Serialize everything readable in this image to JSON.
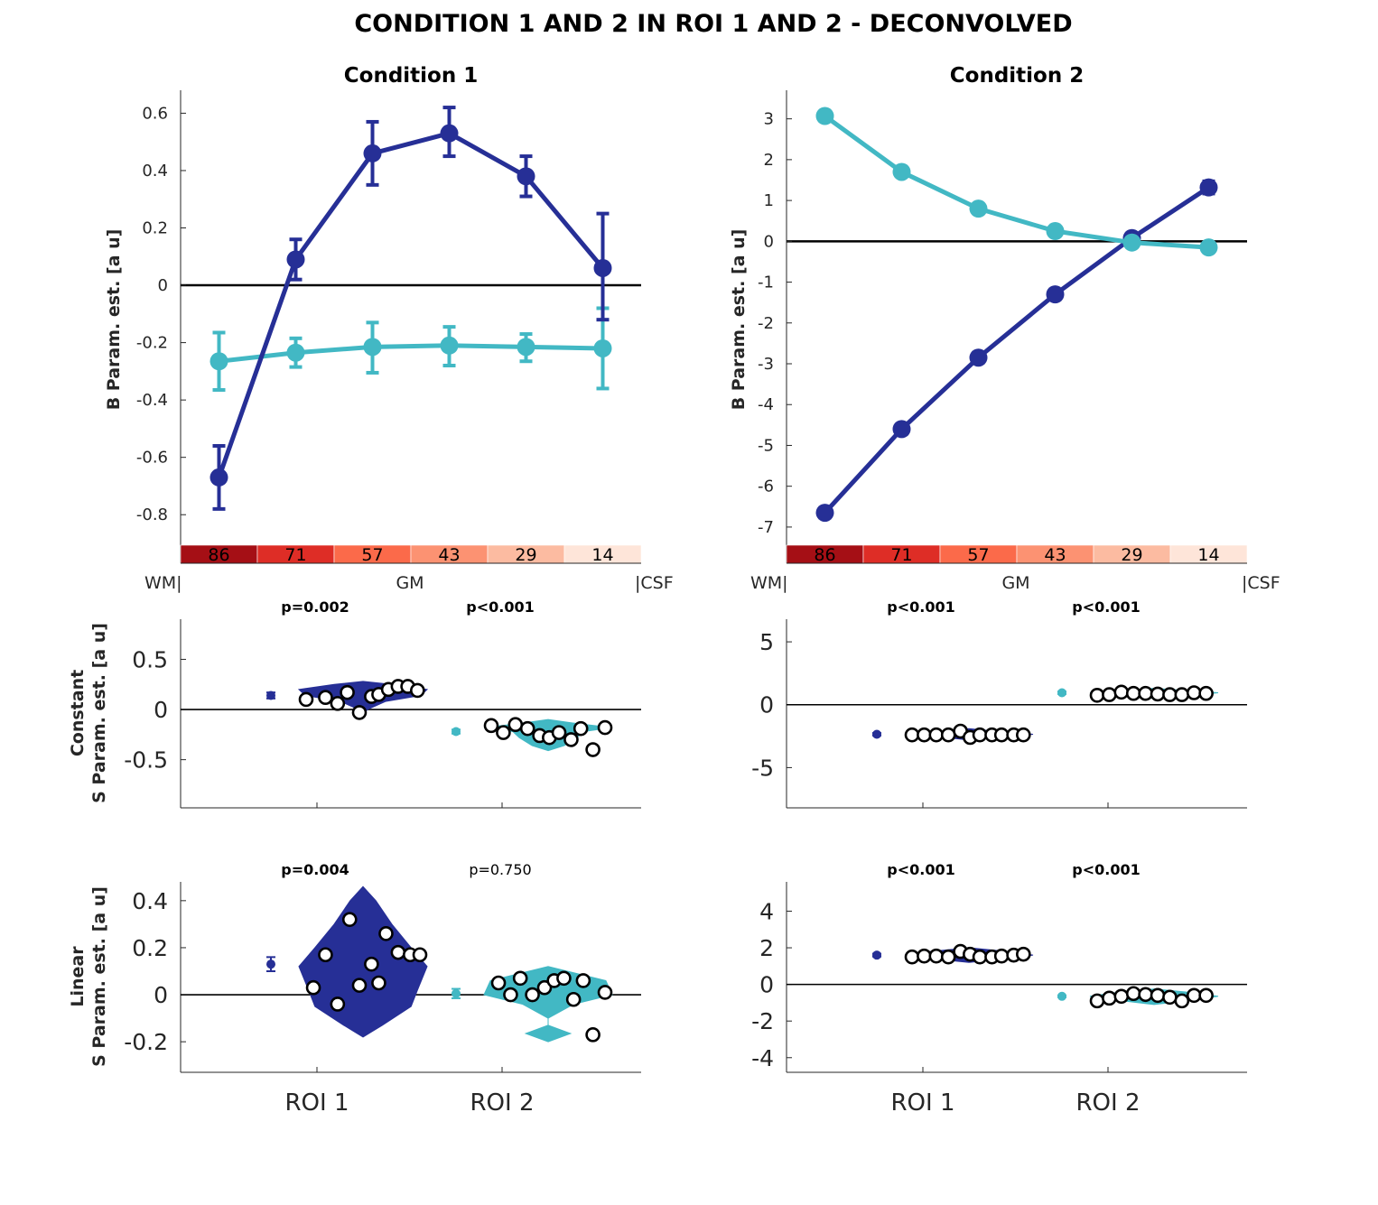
{
  "title": "CONDITION 1 AND 2 IN ROI 1 AND 2 - DECONVOLVED",
  "colors": {
    "roi1": "#262f96",
    "roi2": "#42b8c4",
    "axis": "#262626"
  },
  "layer_labels": {
    "left": "WM|",
    "middle": "GM",
    "right": "|CSF"
  },
  "colorbar": {
    "labels": [
      "86",
      "71",
      "57",
      "43",
      "29",
      "14"
    ],
    "colors": [
      "#a50f15",
      "#de2d26",
      "#fb6a4a",
      "#fc9272",
      "#fcbba1",
      "#fee5d9"
    ]
  },
  "y_labels": {
    "profile": "B Param. est. [a u]",
    "constant_line1": "Constant",
    "constant_line2": "S Param. est. [a u]",
    "linear_line1": "Linear",
    "linear_line2": "S Param. est. [a u]"
  },
  "roi_ticks": [
    "ROI 1",
    "ROI 2"
  ],
  "chart_data": [
    {
      "type": "line",
      "title": "Condition 1",
      "ylabel": "B Param. est. [a u]",
      "ylim": [
        -0.9,
        0.68
      ],
      "yticks": [
        -0.8,
        -0.6,
        -0.4,
        -0.2,
        0,
        0.2,
        0.4,
        0.6
      ],
      "ytick_labels": [
        "-0.8",
        "-0.6",
        "-0.4",
        "-0.2",
        "0",
        "0.2",
        "0.4",
        "0.6"
      ],
      "x": [
        1,
        2,
        3,
        4,
        5,
        6
      ],
      "series": [
        {
          "color": "#262f96",
          "values": [
            -0.67,
            0.09,
            0.46,
            0.53,
            0.38,
            0.06
          ],
          "err_low": [
            0.11,
            0.07,
            0.11,
            0.08,
            0.07,
            0.18
          ],
          "err_high": [
            0.11,
            0.07,
            0.11,
            0.09,
            0.07,
            0.19
          ]
        },
        {
          "color": "#42b8c4",
          "values": [
            -0.265,
            -0.235,
            -0.215,
            -0.21,
            -0.215,
            -0.22
          ],
          "err_low": [
            0.1,
            0.05,
            0.09,
            0.07,
            0.05,
            0.14
          ],
          "err_high": [
            0.1,
            0.05,
            0.085,
            0.065,
            0.045,
            0.14
          ]
        }
      ]
    },
    {
      "type": "line",
      "title": "Condition 2",
      "ylabel": "B Param. est. [a u]",
      "ylim": [
        -7.4,
        3.7
      ],
      "yticks": [
        -7,
        -6,
        -5,
        -4,
        -3,
        -2,
        -1,
        0,
        1,
        2,
        3
      ],
      "ytick_labels": [
        "-7",
        "-6",
        "-5",
        "-4",
        "-3",
        "-2",
        "-1",
        "0",
        "1",
        "2",
        "3"
      ],
      "x": [
        1,
        2,
        3,
        4,
        5,
        6
      ],
      "series": [
        {
          "color": "#262f96",
          "values": [
            -6.65,
            -4.6,
            -2.85,
            -1.3,
            0.08,
            1.32
          ],
          "err_low": [
            0.12,
            0.12,
            0.12,
            0.12,
            0.1,
            0.15
          ],
          "err_high": [
            0.12,
            0.12,
            0.12,
            0.12,
            0.1,
            0.15
          ]
        },
        {
          "color": "#42b8c4",
          "values": [
            3.07,
            1.7,
            0.8,
            0.25,
            -0.03,
            -0.15
          ],
          "err_low": [
            0.1,
            0.1,
            0.08,
            0.08,
            0.08,
            0.1
          ],
          "err_high": [
            0.1,
            0.1,
            0.08,
            0.08,
            0.08,
            0.1
          ]
        }
      ]
    },
    {
      "type": "scatter",
      "panel": "Condition 1 - Constant",
      "ylabel": "Constant S Param. est. [a u]",
      "ylim": [
        -0.98,
        0.9
      ],
      "yticks": [
        -0.5,
        0,
        0.5
      ],
      "ytick_labels": [
        "-0.5",
        "0",
        "0.5"
      ],
      "categories": [
        "ROI 1",
        "ROI 2"
      ],
      "p_values": [
        {
          "text": "p=0.002",
          "bold": true
        },
        {
          "text": "p<0.001",
          "bold": true
        }
      ],
      "series": [
        {
          "color": "#262f96",
          "mean": 0.14,
          "err": 0.03,
          "x_offset": [
            0.0,
            0.08,
            0.13,
            0.17,
            0.22,
            0.27,
            0.3,
            0.34,
            0.38,
            0.42,
            0.46
          ],
          "values": [
            0.1,
            0.12,
            0.06,
            0.17,
            -0.03,
            0.13,
            0.15,
            0.2,
            0.23,
            0.23,
            0.19
          ],
          "violin_width": [
            [
              -0.05,
              0.0
            ],
            [
              0.0,
              0.07
            ],
            [
              0.08,
              0.35
            ],
            [
              0.14,
              0.9
            ],
            [
              0.2,
              1.0
            ],
            [
              0.25,
              0.45
            ],
            [
              0.28,
              0.0
            ]
          ]
        },
        {
          "color": "#42b8c4",
          "mean": -0.22,
          "err": 0.02,
          "x_offset": [
            0.0,
            0.05,
            0.1,
            0.15,
            0.2,
            0.24,
            0.28,
            0.33,
            0.37,
            0.42,
            0.47
          ],
          "values": [
            -0.16,
            -0.23,
            -0.15,
            -0.19,
            -0.26,
            -0.28,
            -0.23,
            -0.3,
            -0.19,
            -0.4,
            -0.18
          ],
          "violin_width": [
            [
              -0.41,
              0.0
            ],
            [
              -0.36,
              0.25
            ],
            [
              -0.28,
              0.45
            ],
            [
              -0.22,
              0.55
            ],
            [
              -0.18,
              1.0
            ],
            [
              -0.14,
              0.45
            ],
            [
              -0.1,
              0.0
            ]
          ]
        }
      ]
    },
    {
      "type": "scatter",
      "panel": "Condition 2 - Constant",
      "ylim": [
        -8.2,
        6.8
      ],
      "yticks": [
        -5,
        0,
        5
      ],
      "ytick_labels": [
        "-5",
        "0",
        "5"
      ],
      "categories": [
        "ROI 1",
        "ROI 2"
      ],
      "p_values": [
        {
          "text": "p<0.001",
          "bold": true
        },
        {
          "text": "p<0.001",
          "bold": true
        }
      ],
      "series": [
        {
          "color": "#262f96",
          "mean": -2.35,
          "err": 0.1,
          "x_offset": [
            0.0,
            0.05,
            0.1,
            0.15,
            0.2,
            0.24,
            0.28,
            0.33,
            0.37,
            0.42,
            0.46
          ],
          "values": [
            -2.4,
            -2.4,
            -2.4,
            -2.4,
            -2.1,
            -2.6,
            -2.4,
            -2.4,
            -2.4,
            -2.4,
            -2.4
          ],
          "violin_width": [
            [
              -2.8,
              0.0
            ],
            [
              -2.5,
              0.6
            ],
            [
              -2.35,
              1.0
            ],
            [
              -2.2,
              0.6
            ],
            [
              -1.9,
              0.0
            ]
          ]
        },
        {
          "color": "#42b8c4",
          "mean": 0.95,
          "err": 0.1,
          "x_offset": [
            0.0,
            0.05,
            0.1,
            0.15,
            0.2,
            0.25,
            0.3,
            0.35,
            0.4,
            0.45
          ],
          "values": [
            0.75,
            0.8,
            1.0,
            0.9,
            0.9,
            0.85,
            0.8,
            0.8,
            0.95,
            0.9
          ],
          "violin_width": [
            [
              0.5,
              0.0
            ],
            [
              0.8,
              0.7
            ],
            [
              0.95,
              1.0
            ],
            [
              1.1,
              0.6
            ],
            [
              1.3,
              0.0
            ]
          ]
        }
      ]
    },
    {
      "type": "scatter",
      "panel": "Condition 1 - Linear",
      "ylabel": "Linear S Param. est. [a u]",
      "ylim": [
        -0.33,
        0.48
      ],
      "yticks": [
        -0.2,
        0,
        0.2,
        0.4
      ],
      "ytick_labels": [
        "-0.2",
        "0",
        "0.2",
        "0.4"
      ],
      "categories": [
        "ROI 1",
        "ROI 2"
      ],
      "p_values": [
        {
          "text": "p=0.004",
          "bold": true
        },
        {
          "text": "p=0.750",
          "bold": false
        }
      ],
      "series": [
        {
          "color": "#262f96",
          "mean": 0.13,
          "err": 0.03,
          "x_offset": [
            0.03,
            0.08,
            0.13,
            0.18,
            0.22,
            0.27,
            0.3,
            0.33,
            0.38,
            0.43,
            0.47
          ],
          "values": [
            0.03,
            0.17,
            -0.04,
            0.32,
            0.04,
            0.13,
            0.05,
            0.26,
            0.18,
            0.17,
            0.17
          ],
          "violin_width": [
            [
              -0.18,
              0.0
            ],
            [
              -0.13,
              0.3
            ],
            [
              -0.05,
              0.75
            ],
            [
              0.02,
              0.85
            ],
            [
              0.12,
              1.0
            ],
            [
              0.2,
              0.75
            ],
            [
              0.3,
              0.45
            ],
            [
              0.4,
              0.2
            ],
            [
              0.46,
              0.0
            ]
          ]
        },
        {
          "color": "#42b8c4",
          "mean": 0.005,
          "err": 0.02,
          "x_offset": [
            0.03,
            0.08,
            0.12,
            0.17,
            0.22,
            0.26,
            0.3,
            0.34,
            0.38,
            0.42,
            0.47
          ],
          "values": [
            0.05,
            0.0,
            0.07,
            0.0,
            0.03,
            0.06,
            0.07,
            -0.02,
            0.06,
            -0.17,
            0.01
          ],
          "violin_width": [
            [
              -0.2,
              0.0
            ],
            [
              -0.165,
              0.35
            ],
            [
              -0.13,
              0.0
            ],
            [
              -0.1,
              0.0
            ],
            [
              -0.04,
              0.4
            ],
            [
              0.0,
              1.0
            ],
            [
              0.06,
              0.9
            ],
            [
              0.1,
              0.3
            ],
            [
              0.12,
              0.0
            ]
          ]
        }
      ]
    },
    {
      "type": "scatter",
      "panel": "Condition 2 - Linear",
      "ylim": [
        -4.8,
        5.6
      ],
      "yticks": [
        -4,
        -2,
        0,
        2,
        4
      ],
      "ytick_labels": [
        "-4",
        "-2",
        "0",
        "2",
        "4"
      ],
      "categories": [
        "ROI 1",
        "ROI 2"
      ],
      "p_values": [
        {
          "text": "p<0.001",
          "bold": true
        },
        {
          "text": "p<0.001",
          "bold": true
        }
      ],
      "series": [
        {
          "color": "#262f96",
          "mean": 1.6,
          "err": 0.08,
          "x_offset": [
            0.0,
            0.05,
            0.1,
            0.15,
            0.2,
            0.24,
            0.28,
            0.33,
            0.37,
            0.42,
            0.46
          ],
          "values": [
            1.5,
            1.55,
            1.55,
            1.5,
            1.8,
            1.65,
            1.5,
            1.5,
            1.55,
            1.6,
            1.65
          ],
          "violin_width": [
            [
              1.2,
              0.0
            ],
            [
              1.45,
              0.7
            ],
            [
              1.6,
              1.0
            ],
            [
              1.8,
              0.6
            ],
            [
              2.0,
              0.0
            ]
          ]
        },
        {
          "color": "#42b8c4",
          "mean": -0.65,
          "err": 0.05,
          "x_offset": [
            0.0,
            0.05,
            0.1,
            0.15,
            0.2,
            0.25,
            0.3,
            0.35,
            0.4,
            0.45
          ],
          "values": [
            -0.9,
            -0.75,
            -0.65,
            -0.5,
            -0.55,
            -0.6,
            -0.7,
            -0.9,
            -0.6,
            -0.6
          ],
          "violin_width": [
            [
              -1.1,
              0.0
            ],
            [
              -0.85,
              0.6
            ],
            [
              -0.65,
              1.0
            ],
            [
              -0.45,
              0.6
            ],
            [
              -0.25,
              0.0
            ]
          ]
        }
      ]
    }
  ]
}
